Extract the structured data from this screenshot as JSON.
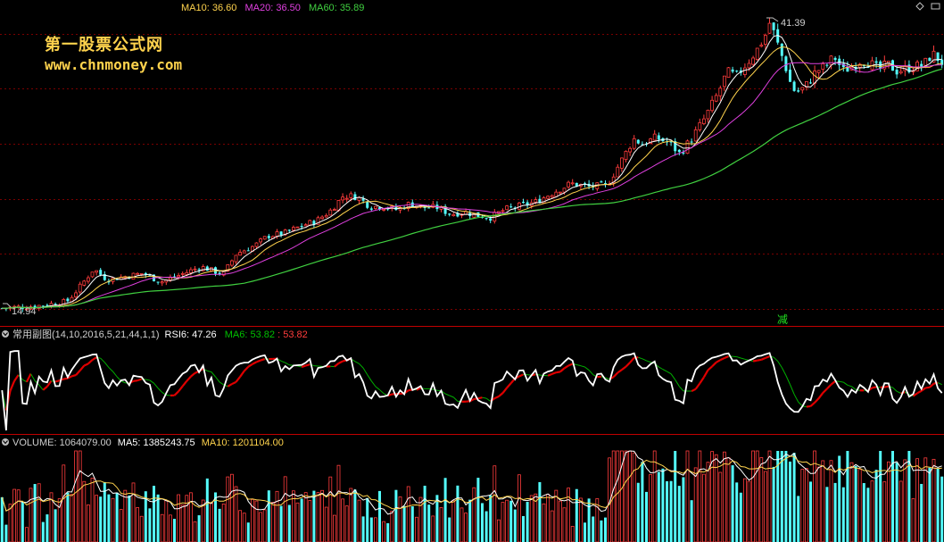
{
  "watermark": {
    "title": "第一股票公式网",
    "url": "www.chnmoney.com"
  },
  "main_panel": {
    "legend": [
      {
        "key": "MA10",
        "value": "36.60",
        "color": "#FFD34D"
      },
      {
        "key": "MA20",
        "value": "36.50",
        "color": "#E040E0"
      },
      {
        "key": "MA60",
        "value": "35.89",
        "color": "#40D040"
      }
    ],
    "max_label": "41.39",
    "min_label": "14.94",
    "signal_label": "减"
  },
  "rsi_panel": {
    "indicator_name": "常用副图",
    "params": "(14,10,2016,5,21,44,1,1)",
    "rsi_key": "RSI6",
    "rsi_value": "47.26",
    "ma_key": "MA6",
    "ma_value": "53.82",
    "extra_value": "53.82"
  },
  "volume_panel": {
    "vol_key": "VOLUME",
    "vol_value": "1064079.00",
    "ma5_key": "MA5",
    "ma5_value": "1385243.75",
    "ma10_key": "MA10",
    "ma10_value": "1201104.00"
  },
  "colors": {
    "up": "#FF3C3C",
    "down": "#54FCFC",
    "grid": "#7A0000",
    "border": "#C00000",
    "ma5": "#FFFFFF",
    "ma10": "#FFD34D",
    "ma20": "#E040E0",
    "ma60": "#40D040",
    "rsi": "#FFFFFF",
    "rsi_ma": "#00B000",
    "rsi_ma_rising": "#E00000"
  },
  "chart_data": [
    {
      "type": "candlestick",
      "title": "",
      "y_min": 14.94,
      "y_max": 41.39,
      "ma_series": [
        {
          "name": "MA10",
          "last": 36.6
        },
        {
          "name": "MA20",
          "last": 36.5
        },
        {
          "name": "MA60",
          "last": 35.89
        }
      ],
      "price_path_approx": [
        [
          0,
          15.0
        ],
        [
          40,
          15.2
        ],
        [
          75,
          15.6
        ],
        [
          90,
          17.0
        ],
        [
          105,
          18.6
        ],
        [
          120,
          17.6
        ],
        [
          140,
          17.9
        ],
        [
          160,
          18.2
        ],
        [
          180,
          17.4
        ],
        [
          200,
          18.0
        ],
        [
          225,
          18.8
        ],
        [
          250,
          18.1
        ],
        [
          265,
          20.0
        ],
        [
          285,
          20.7
        ],
        [
          300,
          21.6
        ],
        [
          320,
          21.9
        ],
        [
          340,
          22.6
        ],
        [
          355,
          23.0
        ],
        [
          370,
          23.9
        ],
        [
          385,
          25.3
        ],
        [
          400,
          25.2
        ],
        [
          415,
          24.3
        ],
        [
          430,
          24.3
        ],
        [
          445,
          24.0
        ],
        [
          460,
          24.6
        ],
        [
          475,
          24.2
        ],
        [
          490,
          24.2
        ],
        [
          505,
          23.6
        ],
        [
          520,
          23.8
        ],
        [
          535,
          23.5
        ],
        [
          550,
          23.3
        ],
        [
          565,
          24.0
        ],
        [
          580,
          24.3
        ],
        [
          600,
          24.7
        ],
        [
          620,
          25.6
        ],
        [
          640,
          26.4
        ],
        [
          660,
          26.1
        ],
        [
          680,
          26.2
        ],
        [
          690,
          27.6
        ],
        [
          700,
          29.0
        ],
        [
          710,
          30.5
        ],
        [
          720,
          30.0
        ],
        [
          735,
          30.6
        ],
        [
          750,
          30.1
        ],
        [
          762,
          29.1
        ],
        [
          775,
          30.5
        ],
        [
          790,
          32.4
        ],
        [
          805,
          34.7
        ],
        [
          815,
          36.6
        ],
        [
          825,
          36.2
        ],
        [
          840,
          37.7
        ],
        [
          850,
          38.8
        ],
        [
          858,
          40.0
        ],
        [
          863,
          41.2
        ],
        [
          870,
          39.5
        ],
        [
          880,
          37.2
        ],
        [
          888,
          35.0
        ],
        [
          896,
          34.8
        ],
        [
          905,
          35.5
        ],
        [
          915,
          36.7
        ],
        [
          925,
          37.1
        ],
        [
          935,
          38.0
        ],
        [
          945,
          36.7
        ],
        [
          955,
          37.1
        ],
        [
          965,
          37.7
        ],
        [
          975,
          37.4
        ],
        [
          985,
          36.8
        ],
        [
          995,
          37.3
        ],
        [
          1005,
          36.7
        ],
        [
          1015,
          36.9
        ],
        [
          1025,
          37.1
        ],
        [
          1035,
          37.2
        ],
        [
          1045,
          38.3
        ],
        [
          1058,
          37.3
        ]
      ]
    },
    {
      "type": "line",
      "title": "常用副图",
      "series": [
        {
          "name": "RSI6",
          "last": 47.26
        },
        {
          "name": "MA6",
          "last": 53.82
        }
      ],
      "ylim": [
        0,
        100
      ]
    },
    {
      "type": "bar",
      "title": "VOLUME",
      "series": [
        {
          "name": "VOLUME",
          "last": 1064079.0
        },
        {
          "name": "MA5",
          "last": 1385243.75
        },
        {
          "name": "MA10",
          "last": 1201104.0
        }
      ]
    }
  ]
}
